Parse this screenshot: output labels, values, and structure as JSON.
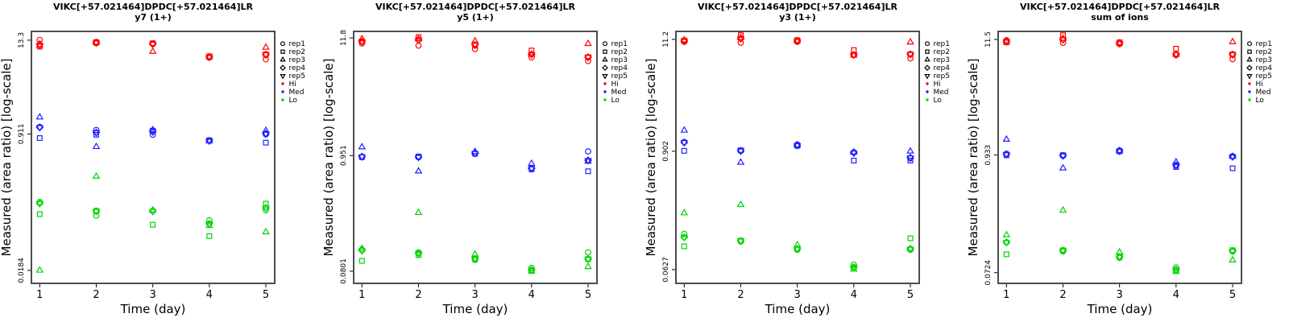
{
  "figure": {
    "background": "#ffffff",
    "ylabel": "Measured (area ratio) [log-scale]",
    "xlabel": "Time (day)",
    "x_tick_labels": [
      "1",
      "2",
      "3",
      "4",
      "5"
    ],
    "box_color": "#4d4d4d",
    "legend": {
      "shape_entries": [
        {
          "label": "rep1",
          "marker": "circle"
        },
        {
          "label": "rep2",
          "marker": "square"
        },
        {
          "label": "rep3",
          "marker": "triangle-up"
        },
        {
          "label": "rep4",
          "marker": "diamond"
        },
        {
          "label": "rep5",
          "marker": "triangle-down"
        }
      ],
      "color_entries": [
        {
          "label": "Hi",
          "color": "#ff0000"
        },
        {
          "label": "Med",
          "color": "#2020ff"
        },
        {
          "label": "Lo",
          "color": "#00d400"
        }
      ]
    }
  },
  "chart_data": [
    {
      "type": "scatter",
      "title": "VIKC[+57.021464]DPDC[+57.021464]LR",
      "subtitle": "y7 (1+)",
      "xlabel": "Time (day)",
      "ylabel": "Measured (area ratio) [log-scale]",
      "log_y": true,
      "x": [
        1,
        2,
        3,
        4,
        5
      ],
      "xlim": [
        0.85,
        5.15
      ],
      "ylim": [
        0.0127,
        17.1
      ],
      "yticks": [
        13.3,
        0.911,
        0.0184
      ],
      "ytick_labels": [
        "13.3",
        "0.911",
        "0.0184"
      ],
      "legend_position": "right",
      "grid": false,
      "groups": [
        {
          "name": "Hi",
          "color": "#ff0000",
          "reps": [
            {
              "name": "rep1",
              "marker": "circle",
              "values": [
                13.4,
                12.2,
                12.0,
                8.1,
                7.7
              ]
            },
            {
              "name": "rep2",
              "marker": "square",
              "values": [
                11.1,
                12.6,
                12.2,
                8.4,
                8.9
              ]
            },
            {
              "name": "rep3",
              "marker": "triangle-up",
              "values": [
                11.5,
                12.4,
                9.6,
                8.2,
                10.8
              ]
            },
            {
              "name": "rep4",
              "marker": "diamond",
              "values": [
                11.9,
                12.4,
                11.9,
                8.2,
                8.8
              ]
            },
            {
              "name": "rep5",
              "marker": "triangle-down",
              "values": [
                11.4,
                12.4,
                11.9,
                8.2,
                8.8
              ]
            }
          ]
        },
        {
          "name": "Med",
          "color": "#2020ff",
          "reps": [
            {
              "name": "rep1",
              "marker": "circle",
              "values": [
                1.11,
                1.02,
                0.89,
                0.75,
                0.9
              ]
            },
            {
              "name": "rep2",
              "marker": "square",
              "values": [
                0.81,
                0.89,
                1.0,
                0.76,
                0.71
              ]
            },
            {
              "name": "rep3",
              "marker": "triangle-up",
              "values": [
                1.47,
                0.63,
                1.02,
                0.74,
                1.0
              ]
            },
            {
              "name": "rep4",
              "marker": "diamond",
              "values": [
                1.1,
                0.95,
                0.97,
                0.75,
                0.92
              ]
            },
            {
              "name": "rep5",
              "marker": "triangle-down",
              "values": [
                1.1,
                0.95,
                0.97,
                0.75,
                0.92
              ]
            }
          ]
        },
        {
          "name": "Lo",
          "color": "#00d400",
          "reps": [
            {
              "name": "rep1",
              "marker": "circle",
              "values": [
                0.13,
                0.088,
                0.101,
                0.077,
                0.103
              ]
            },
            {
              "name": "rep2",
              "marker": "square",
              "values": [
                0.092,
                0.101,
                0.068,
                0.049,
                0.124
              ]
            },
            {
              "name": "rep3",
              "marker": "triangle-up",
              "values": [
                0.0184,
                0.27,
                0.103,
                0.066,
                0.055
              ]
            },
            {
              "name": "rep4",
              "marker": "diamond",
              "values": [
                0.125,
                0.1,
                0.1,
                0.07,
                0.11
              ]
            },
            {
              "name": "rep5",
              "marker": "triangle-down",
              "values": [
                0.125,
                0.1,
                0.1,
                0.07,
                0.11
              ]
            }
          ]
        }
      ]
    },
    {
      "type": "scatter",
      "title": "VIKC[+57.021464]DPDC[+57.021464]LR",
      "subtitle": "y5 (1+)",
      "xlabel": "Time (day)",
      "ylabel": "Measured (area ratio) [log-scale]",
      "log_y": true,
      "x": [
        1,
        2,
        3,
        4,
        5
      ],
      "xlim": [
        0.85,
        5.15
      ],
      "ylim": [
        0.0618,
        13.55
      ],
      "yticks": [
        11.8,
        0.951,
        0.0801
      ],
      "ytick_labels": [
        "11.8",
        "0.951",
        "0.0801"
      ],
      "legend_position": "right",
      "grid": false,
      "groups": [
        {
          "name": "Hi",
          "color": "#ff0000",
          "reps": [
            {
              "name": "rep1",
              "marker": "circle",
              "values": [
                10.5,
                10.0,
                9.3,
                7.8,
                7.2
              ]
            },
            {
              "name": "rep2",
              "marker": "square",
              "values": [
                10.9,
                12.0,
                10.0,
                9.0,
                7.8
              ]
            },
            {
              "name": "rep3",
              "marker": "triangle-up",
              "values": [
                11.5,
                11.5,
                11.0,
                8.3,
                10.4
              ]
            },
            {
              "name": "rep4",
              "marker": "diamond",
              "values": [
                10.9,
                11.3,
                10.2,
                8.3,
                7.8
              ]
            },
            {
              "name": "rep5",
              "marker": "triangle-down",
              "values": [
                10.9,
                11.3,
                10.2,
                8.3,
                7.8
              ]
            }
          ]
        },
        {
          "name": "Med",
          "color": "#2020ff",
          "reps": [
            {
              "name": "rep1",
              "marker": "circle",
              "values": [
                0.92,
                0.92,
                1.0,
                0.73,
                1.04
              ]
            },
            {
              "name": "rep2",
              "marker": "square",
              "values": [
                0.92,
                0.93,
                0.99,
                0.71,
                0.68
              ]
            },
            {
              "name": "rep3",
              "marker": "triangle-up",
              "values": [
                1.14,
                0.68,
                1.03,
                0.8,
                0.84
              ]
            },
            {
              "name": "rep4",
              "marker": "diamond",
              "values": [
                0.93,
                0.92,
                1.0,
                0.72,
                0.86
              ]
            },
            {
              "name": "rep5",
              "marker": "triangle-down",
              "values": [
                0.93,
                0.92,
                1.0,
                0.72,
                0.86
              ]
            }
          ]
        },
        {
          "name": "Lo",
          "color": "#00d400",
          "reps": [
            {
              "name": "rep1",
              "marker": "circle",
              "values": [
                0.127,
                0.12,
                0.102,
                0.086,
                0.12
              ]
            },
            {
              "name": "rep2",
              "marker": "square",
              "values": [
                0.1,
                0.113,
                0.104,
                0.082,
                0.104
              ]
            },
            {
              "name": "rep3",
              "marker": "triangle-up",
              "values": [
                0.13,
                0.28,
                0.115,
                0.08,
                0.088
              ]
            },
            {
              "name": "rep4",
              "marker": "diamond",
              "values": [
                0.125,
                0.117,
                0.105,
                0.082,
                0.104
              ]
            },
            {
              "name": "rep5",
              "marker": "triangle-down",
              "values": [
                0.125,
                0.117,
                0.105,
                0.082,
                0.104
              ]
            }
          ]
        }
      ]
    },
    {
      "type": "scatter",
      "title": "VIKC[+57.021464]DPDC[+57.021464]LR",
      "subtitle": "y3 (1+)",
      "xlabel": "Time (day)",
      "ylabel": "Measured (area ratio) [log-scale]",
      "log_y": true,
      "x": [
        1,
        2,
        3,
        4,
        5
      ],
      "xlim": [
        0.85,
        5.15
      ],
      "ylim": [
        0.046,
        13.4
      ],
      "yticks": [
        11.2,
        0.902,
        0.0627
      ],
      "ytick_labels": [
        "11.2",
        "0.902",
        "0.0627"
      ],
      "legend_position": "right",
      "grid": false,
      "groups": [
        {
          "name": "Hi",
          "color": "#ff0000",
          "reps": [
            {
              "name": "rep1",
              "marker": "circle",
              "values": [
                10.6,
                10.4,
                10.6,
                7.9,
                7.3
              ]
            },
            {
              "name": "rep2",
              "marker": "square",
              "values": [
                10.9,
                12.3,
                11.0,
                8.8,
                8.0
              ]
            },
            {
              "name": "rep3",
              "marker": "triangle-up",
              "values": [
                11.0,
                11.6,
                10.8,
                7.8,
                10.5
              ]
            },
            {
              "name": "rep4",
              "marker": "diamond",
              "values": [
                10.8,
                11.4,
                10.8,
                7.9,
                8.0
              ]
            },
            {
              "name": "rep5",
              "marker": "triangle-down",
              "values": [
                10.8,
                11.4,
                10.8,
                7.9,
                8.0
              ]
            }
          ]
        },
        {
          "name": "Med",
          "color": "#2020ff",
          "reps": [
            {
              "name": "rep1",
              "marker": "circle",
              "values": [
                1.11,
                0.91,
                1.05,
                0.88,
                0.77
              ]
            },
            {
              "name": "rep2",
              "marker": "square",
              "values": [
                0.91,
                0.92,
                1.02,
                0.73,
                0.73
              ]
            },
            {
              "name": "rep3",
              "marker": "triangle-up",
              "values": [
                1.44,
                0.7,
                1.03,
                0.88,
                0.9
              ]
            },
            {
              "name": "rep4",
              "marker": "diamond",
              "values": [
                1.1,
                0.91,
                1.03,
                0.87,
                0.78
              ]
            },
            {
              "name": "rep5",
              "marker": "triangle-down",
              "values": [
                1.1,
                0.91,
                1.03,
                0.87,
                0.78
              ]
            }
          ]
        },
        {
          "name": "Lo",
          "color": "#00d400",
          "reps": [
            {
              "name": "rep1",
              "marker": "circle",
              "values": [
                0.14,
                0.118,
                0.098,
                0.07,
                0.098
              ]
            },
            {
              "name": "rep2",
              "marker": "square",
              "values": [
                0.106,
                0.12,
                0.1,
                0.066,
                0.127
              ]
            },
            {
              "name": "rep3",
              "marker": "triangle-up",
              "values": [
                0.224,
                0.27,
                0.109,
                0.063,
                0.1
              ]
            },
            {
              "name": "rep4",
              "marker": "diamond",
              "values": [
                0.13,
                0.12,
                0.1,
                0.066,
                0.1
              ]
            },
            {
              "name": "rep5",
              "marker": "triangle-down",
              "values": [
                0.13,
                0.12,
                0.1,
                0.066,
                0.1
              ]
            }
          ]
        }
      ]
    },
    {
      "type": "scatter",
      "title": "VIKC[+57.021464]DPDC[+57.021464]LR",
      "subtitle": "sum of ions",
      "xlabel": "Time (day)",
      "ylabel": "Measured (area ratio) [log-scale]",
      "log_y": true,
      "x": [
        1,
        2,
        3,
        4,
        5
      ],
      "xlim": [
        0.85,
        5.15
      ],
      "ylim": [
        0.0574,
        13.7
      ],
      "yticks": [
        11.5,
        0.933,
        0.0724
      ],
      "ytick_labels": [
        "11.5",
        "0.933",
        "0.0724"
      ],
      "legend_position": "right",
      "grid": false,
      "groups": [
        {
          "name": "Hi",
          "color": "#ff0000",
          "reps": [
            {
              "name": "rep1",
              "marker": "circle",
              "values": [
                11.3,
                10.7,
                10.4,
                8.2,
                7.5
              ]
            },
            {
              "name": "rep2",
              "marker": "square",
              "values": [
                10.8,
                12.6,
                10.8,
                9.4,
                8.3
              ]
            },
            {
              "name": "rep3",
              "marker": "triangle-up",
              "values": [
                11.0,
                11.7,
                10.6,
                8.3,
                10.9
              ]
            },
            {
              "name": "rep4",
              "marker": "diamond",
              "values": [
                11.0,
                11.5,
                10.6,
                8.3,
                8.3
              ]
            },
            {
              "name": "rep5",
              "marker": "triangle-down",
              "values": [
                11.0,
                11.5,
                10.6,
                8.3,
                8.3
              ]
            }
          ]
        },
        {
          "name": "Med",
          "color": "#2020ff",
          "reps": [
            {
              "name": "rep1",
              "marker": "circle",
              "values": [
                0.96,
                0.92,
                1.03,
                0.74,
                0.91
              ]
            },
            {
              "name": "rep2",
              "marker": "square",
              "values": [
                0.93,
                0.93,
                1.01,
                0.72,
                0.7
              ]
            },
            {
              "name": "rep3",
              "marker": "triangle-up",
              "values": [
                1.31,
                0.7,
                1.02,
                0.8,
                0.9
              ]
            },
            {
              "name": "rep4",
              "marker": "diamond",
              "values": [
                0.95,
                0.92,
                1.02,
                0.75,
                0.9
              ]
            },
            {
              "name": "rep5",
              "marker": "triangle-down",
              "values": [
                0.95,
                0.92,
                1.02,
                0.75,
                0.9
              ]
            }
          ]
        },
        {
          "name": "Lo",
          "color": "#00d400",
          "reps": [
            {
              "name": "rep1",
              "marker": "circle",
              "values": [
                0.14,
                0.115,
                0.1,
                0.081,
                0.115
              ]
            },
            {
              "name": "rep2",
              "marker": "square",
              "values": [
                0.108,
                0.118,
                0.102,
                0.077,
                0.118
              ]
            },
            {
              "name": "rep3",
              "marker": "triangle-up",
              "values": [
                0.164,
                0.28,
                0.113,
                0.074,
                0.095
              ]
            },
            {
              "name": "rep4",
              "marker": "diamond",
              "values": [
                0.14,
                0.117,
                0.102,
                0.077,
                0.116
              ]
            },
            {
              "name": "rep5",
              "marker": "triangle-down",
              "values": [
                0.14,
                0.117,
                0.102,
                0.077,
                0.116
              ]
            }
          ]
        }
      ]
    }
  ]
}
